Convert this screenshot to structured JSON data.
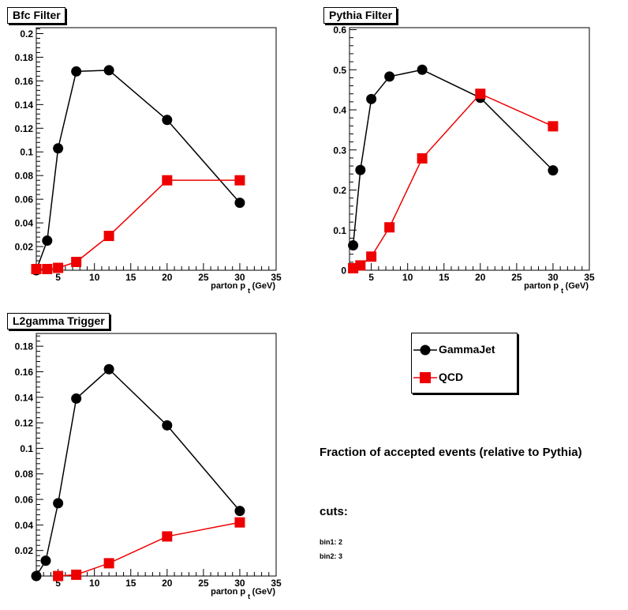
{
  "panels": {
    "bfc": {
      "title": "Bfc Filter",
      "xlabel_main": "parton p",
      "xlabel_sub": "t",
      "xlabel_unit": "(GeV)"
    },
    "pythia": {
      "title": "Pythia Filter",
      "xlabel_main": "parton p",
      "xlabel_sub": "t",
      "xlabel_unit": "(GeV)"
    },
    "l2": {
      "title": "L2gamma Trigger",
      "xlabel_main": "parton p",
      "xlabel_sub": "t",
      "xlabel_unit": "(GeV)"
    }
  },
  "legend": {
    "gamma_label": "GammaJet",
    "qcd_label": "QCD"
  },
  "notes": {
    "title": "Fraction of accepted events (relative to Pythia)",
    "cuts": "cuts:",
    "bin1": "bin1: 2",
    "bin2": "bin2: 3"
  },
  "colors": {
    "gamma": "#000000",
    "qcd": "#ee0000"
  },
  "chart_data": [
    {
      "id": "bfc",
      "type": "line",
      "title": "Bfc Filter",
      "xlabel": "parton p t (GeV)",
      "ylabel": "",
      "xlim": [
        2,
        35
      ],
      "ylim": [
        0,
        0.205
      ],
      "xticks": [
        5,
        10,
        15,
        20,
        25,
        30,
        35
      ],
      "yticks": [
        0.02,
        0.04,
        0.06,
        0.08,
        0.1,
        0.12,
        0.14,
        0.16,
        0.18,
        0.2
      ],
      "series": [
        {
          "name": "GammaJet",
          "x": [
            2,
            3.5,
            5,
            7.5,
            12,
            20,
            30
          ],
          "y": [
            0.0,
            0.025,
            0.103,
            0.168,
            0.169,
            0.127,
            0.057
          ]
        },
        {
          "name": "QCD",
          "x": [
            2,
            3.5,
            5,
            7.5,
            12,
            20,
            30
          ],
          "y": [
            0.001,
            0.001,
            0.002,
            0.007,
            0.029,
            0.076,
            0.076
          ]
        }
      ]
    },
    {
      "id": "pythia",
      "type": "line",
      "title": "Pythia Filter",
      "xlabel": "parton p t (GeV)",
      "ylabel": "",
      "xlim": [
        2,
        35
      ],
      "ylim": [
        0,
        0.605
      ],
      "xticks": [
        5,
        10,
        15,
        20,
        25,
        30,
        35
      ],
      "yticks": [
        0,
        0.1,
        0.2,
        0.3,
        0.4,
        0.5,
        0.6
      ],
      "series": [
        {
          "name": "GammaJet",
          "x": [
            2.5,
            3.5,
            5,
            7.5,
            12,
            20,
            30
          ],
          "y": [
            0.062,
            0.25,
            0.427,
            0.483,
            0.5,
            0.43,
            0.249
          ]
        },
        {
          "name": "QCD",
          "x": [
            2.5,
            3.5,
            5,
            7.5,
            12,
            20,
            30
          ],
          "y": [
            0.005,
            0.012,
            0.034,
            0.107,
            0.279,
            0.44,
            0.359
          ]
        }
      ]
    },
    {
      "id": "l2",
      "type": "line",
      "title": "L2gamma Trigger",
      "xlabel": "parton p t (GeV)",
      "ylabel": "",
      "xlim": [
        2,
        35
      ],
      "ylim": [
        0,
        0.19
      ],
      "xticks": [
        5,
        10,
        15,
        20,
        25,
        30,
        35
      ],
      "yticks": [
        0.02,
        0.04,
        0.06,
        0.08,
        0.1,
        0.12,
        0.14,
        0.16,
        0.18
      ],
      "series": [
        {
          "name": "GammaJet",
          "x": [
            2,
            3.3,
            5,
            7.5,
            12,
            20,
            30
          ],
          "y": [
            0.0,
            0.012,
            0.057,
            0.139,
            0.162,
            0.118,
            0.051
          ]
        },
        {
          "name": "QCD",
          "x": [
            5,
            7.5,
            12,
            20,
            30
          ],
          "y": [
            0.0,
            0.001,
            0.01,
            0.031,
            0.042
          ]
        }
      ]
    }
  ]
}
